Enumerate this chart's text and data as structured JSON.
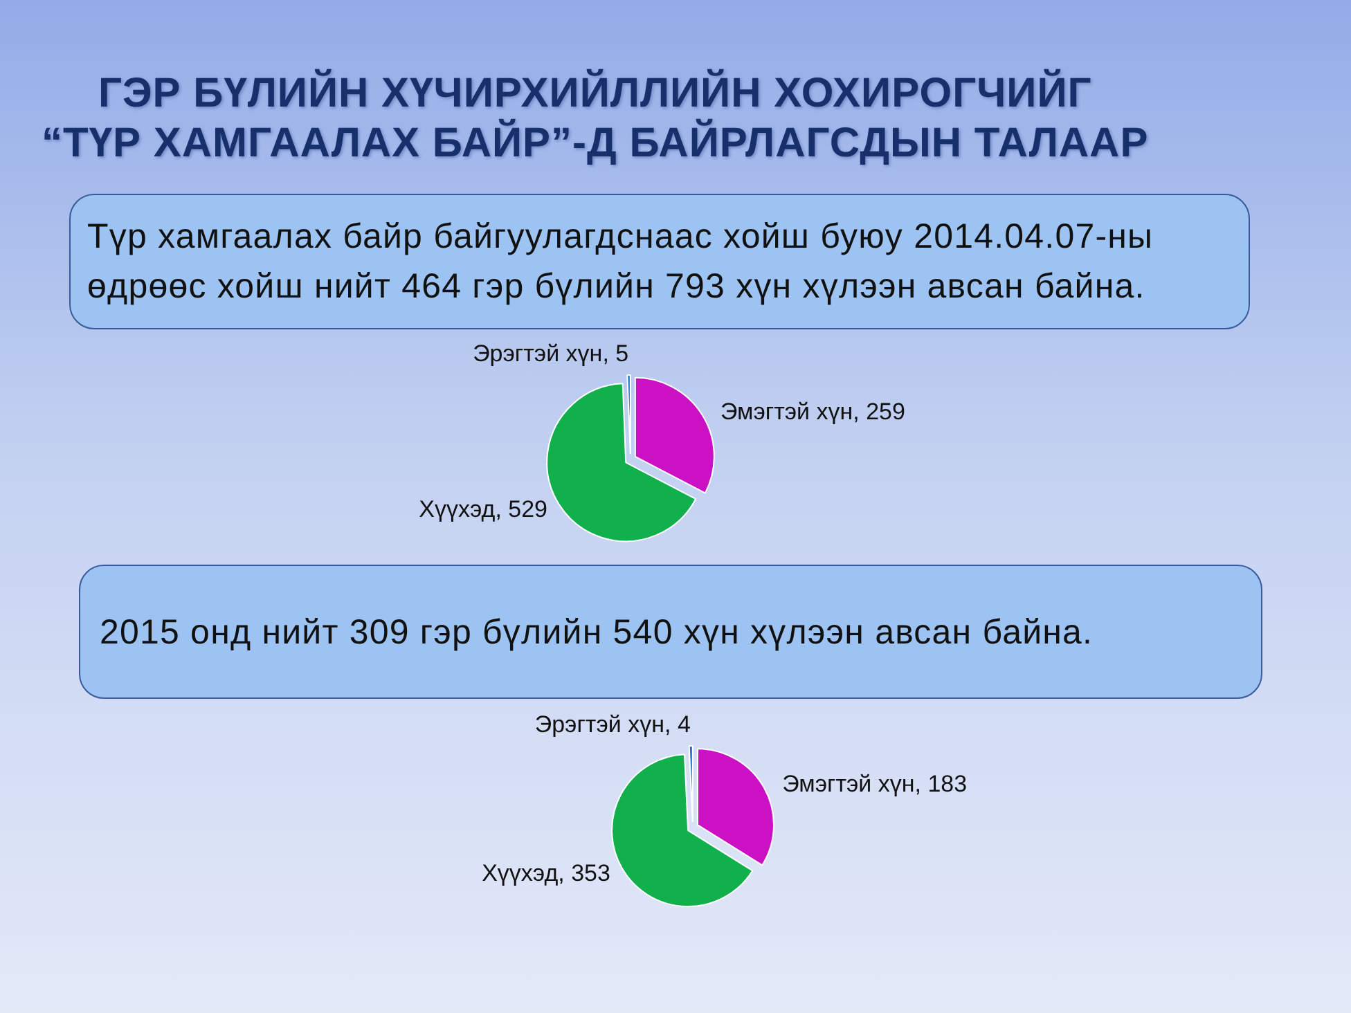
{
  "chart_data": [
    {
      "type": "pie",
      "title": "ГЭР БҮЛИЙН ХҮЧИРХИЙЛЛИЙН ХОХИРОГЧИЙГ\n“ТҮР ХАМГААЛАХ БАЙР”-Д БАЙРЛАГСДЫН ТАЛААР",
      "subtitle": "Түр хамгаалах байр байгуулагдснаас хойш буюу 2014.04.07-ны өдрөөс хойш нийт 464 гэр бүлийн 793 хүн хүлээн авсан байна.",
      "categories": [
        "Эмэгтэй хүн",
        "Хүүхэд",
        "Эрэгтэй хүн"
      ],
      "values": [
        259,
        529,
        5
      ],
      "value_labels": [
        ", 259",
        ", 529",
        ", 5"
      ],
      "colors": [
        "#cc11c4",
        "#12b04c",
        "#1a6fc4"
      ]
    },
    {
      "type": "pie",
      "subtitle": "2015 онд нийт 309 гэр бүлийн 540 хүн хүлээн авсан байна.",
      "categories": [
        "Эмэгтэй хүн",
        "Хүүхэд",
        "Эрэгтэй хүн"
      ],
      "values": [
        183,
        353,
        4
      ],
      "value_labels": [
        ", 183",
        ", 353",
        ", 4"
      ],
      "colors": [
        "#cc11c4",
        "#12b04c",
        "#1a6fc4"
      ]
    }
  ]
}
